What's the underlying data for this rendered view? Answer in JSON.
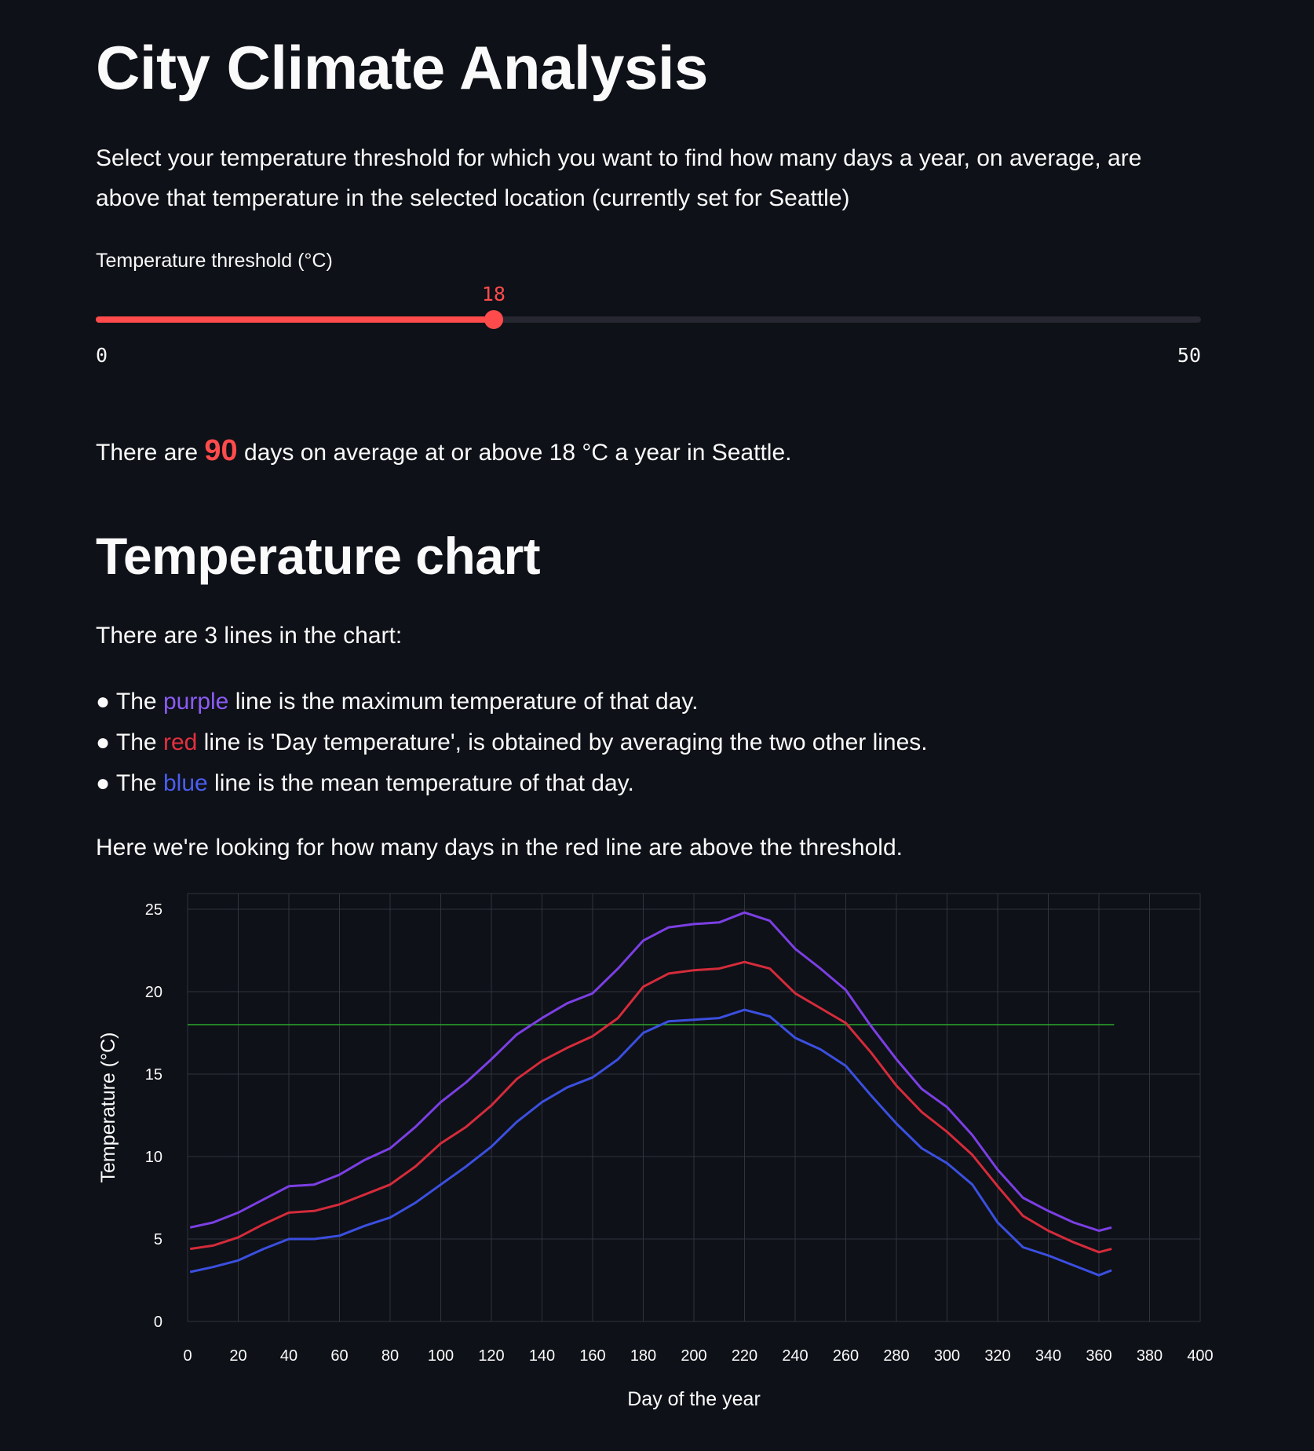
{
  "page": {
    "title": "City Climate Analysis",
    "intro": "Select your temperature threshold for which you want to find how many days a year, on average, are above that temperature in the selected location (currently set for Seattle)"
  },
  "slider": {
    "label": "Temperature threshold (°C)",
    "value": 18,
    "min": 0,
    "max": 50,
    "value_text": "18",
    "min_text": "0",
    "max_text": "50",
    "accent_color": "#ff4b4b"
  },
  "result": {
    "prefix": "There are",
    "count": "90",
    "suffix": "days on average at or above 18 °C a year in Seattle."
  },
  "chart_section": {
    "heading": "Temperature chart",
    "lines_intro": "There are 3 lines in the chart:",
    "bullets": [
      {
        "bullet": "●",
        "pre": "The",
        "color_word": "purple",
        "post": "line is the maximum temperature of that day."
      },
      {
        "bullet": "●",
        "pre": "The",
        "color_word": "red",
        "post": "line is 'Day temperature', is obtained by averaging the two other lines."
      },
      {
        "bullet": "●",
        "pre": "The",
        "color_word": "blue",
        "post": "line is the mean temperature of that day."
      }
    ],
    "note": "Here we're looking for how many days in the red line are above the threshold."
  },
  "chart_data": {
    "type": "line",
    "title": "",
    "xlabel": "Day of the year",
    "ylabel": "Temperature (°C)",
    "xlim": [
      0,
      400
    ],
    "ylim": [
      0,
      25
    ],
    "x_ticks": [
      0,
      20,
      40,
      60,
      80,
      100,
      120,
      140,
      160,
      180,
      200,
      220,
      240,
      260,
      280,
      300,
      320,
      340,
      360,
      380,
      400
    ],
    "y_ticks": [
      0,
      5,
      10,
      15,
      20,
      25
    ],
    "grid": true,
    "threshold": {
      "y": 18,
      "x_from": 0,
      "x_to": 366,
      "color": "#2aa82a"
    },
    "series": [
      {
        "name": "Maximum temperature",
        "color": "#7b3fe4",
        "x": [
          1,
          10,
          20,
          30,
          40,
          50,
          60,
          70,
          80,
          90,
          100,
          110,
          120,
          130,
          140,
          150,
          160,
          170,
          180,
          190,
          200,
          210,
          220,
          230,
          240,
          250,
          260,
          270,
          280,
          290,
          300,
          310,
          320,
          330,
          340,
          350,
          360,
          365
        ],
        "values": [
          5.7,
          6.0,
          6.6,
          7.4,
          8.2,
          8.3,
          8.9,
          9.8,
          10.5,
          11.8,
          13.3,
          14.5,
          15.9,
          17.4,
          18.4,
          19.3,
          19.9,
          21.4,
          23.1,
          23.9,
          24.1,
          24.2,
          24.8,
          24.3,
          22.6,
          21.4,
          20.1,
          17.9,
          15.9,
          14.1,
          13.0,
          11.3,
          9.2,
          7.5,
          6.7,
          6.0,
          5.5,
          5.7
        ]
      },
      {
        "name": "Day temperature",
        "color": "#d52b3b",
        "x": [
          1,
          10,
          20,
          30,
          40,
          50,
          60,
          70,
          80,
          90,
          100,
          110,
          120,
          130,
          140,
          150,
          160,
          170,
          180,
          190,
          200,
          210,
          220,
          230,
          240,
          250,
          260,
          270,
          280,
          290,
          300,
          310,
          320,
          330,
          340,
          350,
          360,
          365
        ],
        "values": [
          4.4,
          4.6,
          5.1,
          5.9,
          6.6,
          6.7,
          7.1,
          7.7,
          8.3,
          9.4,
          10.8,
          11.8,
          13.1,
          14.7,
          15.8,
          16.6,
          17.3,
          18.4,
          20.3,
          21.1,
          21.3,
          21.4,
          21.8,
          21.4,
          19.9,
          19.0,
          18.1,
          16.3,
          14.3,
          12.7,
          11.5,
          10.1,
          8.2,
          6.4,
          5.5,
          4.8,
          4.2,
          4.4
        ]
      },
      {
        "name": "Mean temperature",
        "color": "#3b4fe0",
        "x": [
          1,
          10,
          20,
          30,
          40,
          50,
          60,
          70,
          80,
          90,
          100,
          110,
          120,
          130,
          140,
          150,
          160,
          170,
          180,
          190,
          200,
          210,
          220,
          230,
          240,
          250,
          260,
          270,
          280,
          290,
          300,
          310,
          320,
          330,
          340,
          350,
          360,
          365
        ],
        "values": [
          3.0,
          3.3,
          3.7,
          4.4,
          5.0,
          5.0,
          5.2,
          5.8,
          6.3,
          7.2,
          8.3,
          9.4,
          10.6,
          12.1,
          13.3,
          14.2,
          14.8,
          15.9,
          17.5,
          18.2,
          18.3,
          18.4,
          18.9,
          18.5,
          17.2,
          16.5,
          15.5,
          13.7,
          12.0,
          10.5,
          9.6,
          8.3,
          6.0,
          4.5,
          4.0,
          3.4,
          2.8,
          3.1
        ]
      }
    ]
  }
}
